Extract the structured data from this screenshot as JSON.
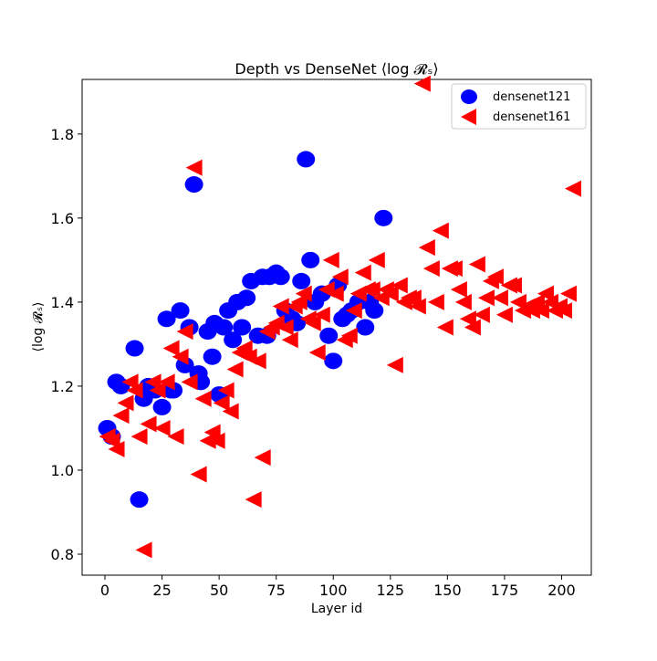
{
  "chart_data": {
    "type": "scatter",
    "title": "Depth vs DenseNet ⟨log 𝓡ₛ⟩",
    "xlabel": "Layer id",
    "ylabel": "⟨log 𝓡ₛ⟩",
    "xlim": [
      -10,
      213
    ],
    "ylim": [
      0.75,
      1.93
    ],
    "xticks": [
      0,
      25,
      50,
      75,
      100,
      125,
      150,
      175,
      200
    ],
    "xtick_labels": [
      "0",
      "25",
      "50",
      "75",
      "100",
      "125",
      "150",
      "175",
      "200"
    ],
    "yticks": [
      0.8,
      1.0,
      1.2,
      1.4,
      1.6,
      1.8
    ],
    "ytick_labels": [
      "0.8",
      "1.0",
      "1.2",
      "1.4",
      "1.6",
      "1.8"
    ],
    "grid": false,
    "legend_position": "top-right",
    "series": [
      {
        "name": "densenet121",
        "color": "#0000ff",
        "marker": "circle",
        "points": [
          [
            1,
            1.1
          ],
          [
            3,
            1.08
          ],
          [
            5,
            1.21
          ],
          [
            7,
            1.2
          ],
          [
            13,
            1.29
          ],
          [
            15,
            0.93
          ],
          [
            17,
            1.17
          ],
          [
            19,
            1.2
          ],
          [
            22,
            1.19
          ],
          [
            25,
            1.15
          ],
          [
            27,
            1.36
          ],
          [
            29,
            1.19
          ],
          [
            30,
            1.19
          ],
          [
            33,
            1.38
          ],
          [
            35,
            1.25
          ],
          [
            37,
            1.34
          ],
          [
            39,
            1.68
          ],
          [
            41,
            1.23
          ],
          [
            42,
            1.21
          ],
          [
            45,
            1.33
          ],
          [
            47,
            1.27
          ],
          [
            48,
            1.35
          ],
          [
            50,
            1.18
          ],
          [
            52,
            1.34
          ],
          [
            54,
            1.38
          ],
          [
            56,
            1.31
          ],
          [
            58,
            1.4
          ],
          [
            60,
            1.34
          ],
          [
            62,
            1.41
          ],
          [
            64,
            1.45
          ],
          [
            67,
            1.32
          ],
          [
            69,
            1.46
          ],
          [
            71,
            1.32
          ],
          [
            72,
            1.46
          ],
          [
            75,
            1.47
          ],
          [
            77,
            1.46
          ],
          [
            79,
            1.38
          ],
          [
            82,
            1.36
          ],
          [
            84,
            1.35
          ],
          [
            86,
            1.45
          ],
          [
            88,
            1.74
          ],
          [
            90,
            1.5
          ],
          [
            92,
            1.4
          ],
          [
            95,
            1.42
          ],
          [
            98,
            1.32
          ],
          [
            100,
            1.26
          ],
          [
            102,
            1.44
          ],
          [
            104,
            1.36
          ],
          [
            106,
            1.37
          ],
          [
            108,
            1.38
          ],
          [
            111,
            1.4
          ],
          [
            114,
            1.34
          ],
          [
            116,
            1.4
          ],
          [
            118,
            1.38
          ],
          [
            122,
            1.6
          ]
        ]
      },
      {
        "name": "densenet161",
        "color": "#ff0000",
        "marker": "triangle-left",
        "points": [
          [
            1,
            1.08
          ],
          [
            3,
            1.07
          ],
          [
            5,
            1.05
          ],
          [
            7,
            1.13
          ],
          [
            9,
            1.16
          ],
          [
            11,
            1.21
          ],
          [
            13,
            1.19
          ],
          [
            15,
            1.08
          ],
          [
            17,
            0.81
          ],
          [
            19,
            1.11
          ],
          [
            21,
            1.21
          ],
          [
            23,
            1.19
          ],
          [
            25,
            1.1
          ],
          [
            27,
            1.21
          ],
          [
            29,
            1.29
          ],
          [
            31,
            1.08
          ],
          [
            33,
            1.27
          ],
          [
            35,
            1.33
          ],
          [
            37,
            1.21
          ],
          [
            39,
            1.72
          ],
          [
            41,
            0.99
          ],
          [
            43,
            1.17
          ],
          [
            45,
            1.07
          ],
          [
            47,
            1.09
          ],
          [
            49,
            1.07
          ],
          [
            51,
            1.16
          ],
          [
            53,
            1.19
          ],
          [
            55,
            1.14
          ],
          [
            57,
            1.24
          ],
          [
            59,
            1.28
          ],
          [
            61,
            1.29
          ],
          [
            63,
            1.27
          ],
          [
            65,
            0.93
          ],
          [
            67,
            1.26
          ],
          [
            69,
            1.03
          ],
          [
            71,
            1.33
          ],
          [
            73,
            1.34
          ],
          [
            75,
            1.35
          ],
          [
            77,
            1.39
          ],
          [
            79,
            1.34
          ],
          [
            81,
            1.31
          ],
          [
            83,
            1.39
          ],
          [
            85,
            1.4
          ],
          [
            87,
            1.42
          ],
          [
            89,
            1.36
          ],
          [
            91,
            1.35
          ],
          [
            93,
            1.28
          ],
          [
            95,
            1.37
          ],
          [
            97,
            1.43
          ],
          [
            99,
            1.5
          ],
          [
            101,
            1.42
          ],
          [
            103,
            1.46
          ],
          [
            105,
            1.31
          ],
          [
            107,
            1.32
          ],
          [
            109,
            1.38
          ],
          [
            111,
            1.42
          ],
          [
            113,
            1.47
          ],
          [
            115,
            1.43
          ],
          [
            117,
            1.43
          ],
          [
            119,
            1.5
          ],
          [
            121,
            1.41
          ],
          [
            123,
            1.43
          ],
          [
            125,
            1.42
          ],
          [
            127,
            1.25
          ],
          [
            129,
            1.44
          ],
          [
            131,
            1.4
          ],
          [
            133,
            1.41
          ],
          [
            135,
            1.41
          ],
          [
            137,
            1.39
          ],
          [
            139,
            1.92
          ],
          [
            141,
            1.53
          ],
          [
            143,
            1.48
          ],
          [
            145,
            1.4
          ],
          [
            147,
            1.57
          ],
          [
            149,
            1.34
          ],
          [
            151,
            1.48
          ],
          [
            153,
            1.48
          ],
          [
            155,
            1.43
          ],
          [
            157,
            1.4
          ],
          [
            159,
            1.36
          ],
          [
            161,
            1.34
          ],
          [
            163,
            1.49
          ],
          [
            165,
            1.37
          ],
          [
            167,
            1.41
          ],
          [
            169,
            1.45
          ],
          [
            171,
            1.46
          ],
          [
            173,
            1.41
          ],
          [
            175,
            1.37
          ],
          [
            177,
            1.44
          ],
          [
            179,
            1.44
          ],
          [
            181,
            1.4
          ],
          [
            183,
            1.38
          ],
          [
            185,
            1.39
          ],
          [
            187,
            1.38
          ],
          [
            189,
            1.4
          ],
          [
            191,
            1.38
          ],
          [
            193,
            1.42
          ],
          [
            195,
            1.4
          ],
          [
            197,
            1.38
          ],
          [
            199,
            1.39
          ],
          [
            201,
            1.38
          ],
          [
            203,
            1.42
          ],
          [
            205,
            1.67
          ]
        ]
      }
    ]
  }
}
